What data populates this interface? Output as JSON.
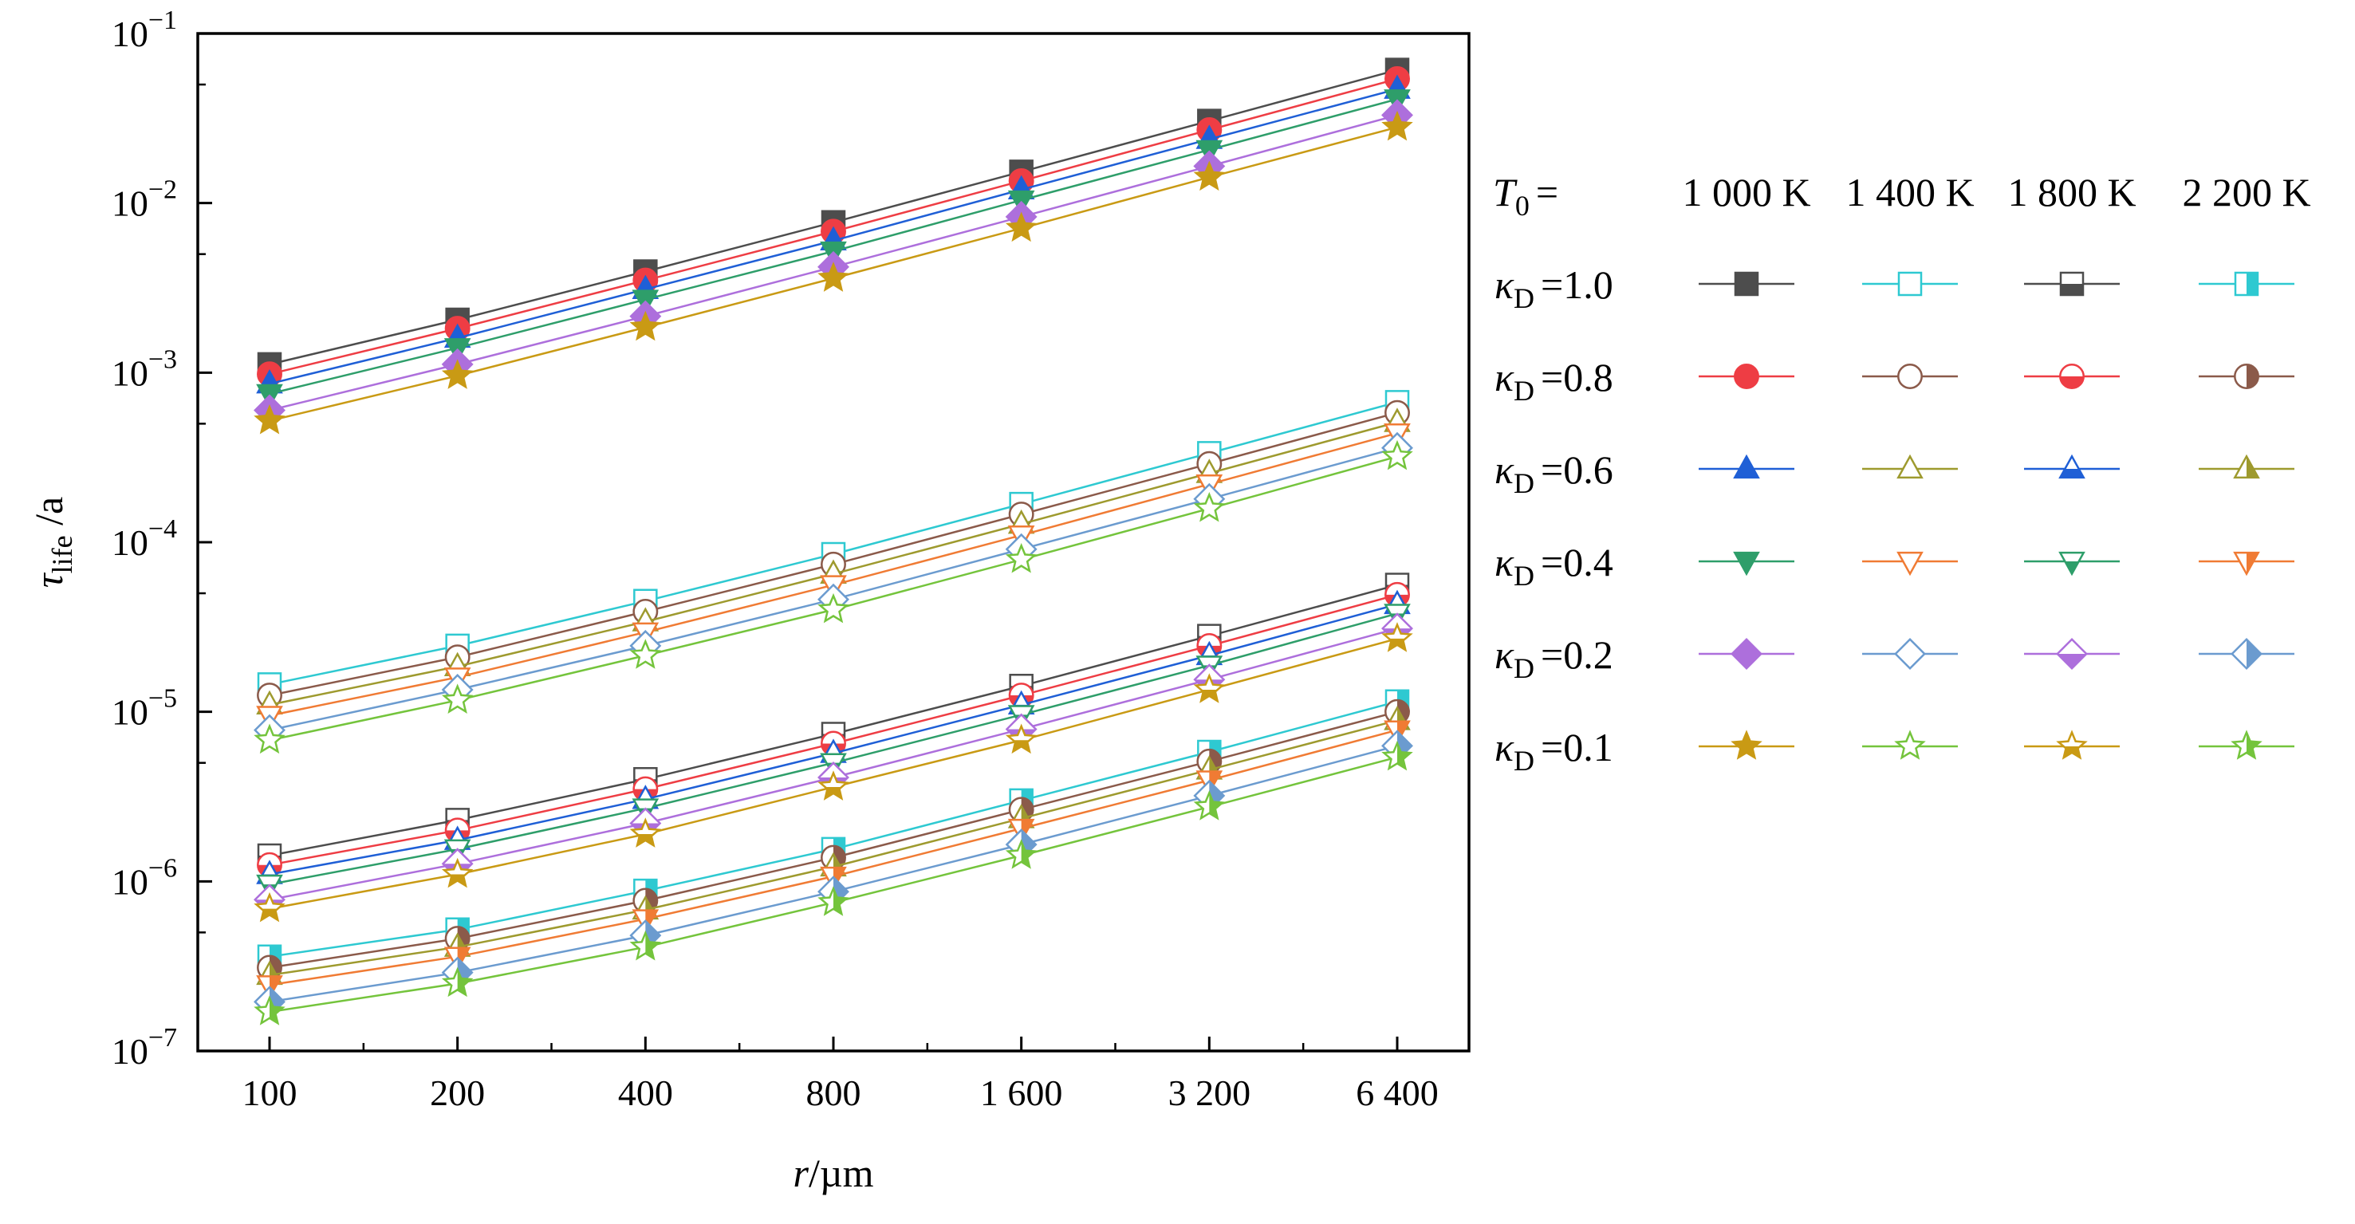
{
  "chart_data": {
    "type": "scatter",
    "title": "",
    "xlabel": "r/µm",
    "ylabel": "τlife /a",
    "x_scale": "log2",
    "y_scale": "log10",
    "x": [
      100,
      200,
      400,
      800,
      1600,
      3200,
      6400
    ],
    "x_tick_labels": [
      "100",
      "200",
      "400",
      "800",
      "1 600",
      "3 200",
      "6 400"
    ],
    "y_ticks": [
      {
        "value": 1e-07,
        "base": "10",
        "exp": "−7"
      },
      {
        "value": 1e-06,
        "base": "10",
        "exp": "−6"
      },
      {
        "value": 1e-05,
        "base": "10",
        "exp": "−5"
      },
      {
        "value": 0.0001,
        "base": "10",
        "exp": "−4"
      },
      {
        "value": 0.001,
        "base": "10",
        "exp": "−3"
      },
      {
        "value": 0.01,
        "base": "10",
        "exp": "−2"
      },
      {
        "value": 0.1,
        "base": "10",
        "exp": "−1"
      }
    ],
    "ylim": [
      1e-07,
      0.1
    ],
    "grid": false,
    "legend": {
      "placement": "right",
      "header_prefix": "T0 =",
      "header_symbol": "T",
      "header_sub": "0",
      "header_eq": "=",
      "temperatures": [
        "1 000 K",
        "1 400 K",
        "1 800 K",
        "2 200 K"
      ],
      "kappa_symbol": "κ",
      "kappa_sub": "D",
      "kappa_labels": [
        "=1.0",
        "=0.8",
        "=0.6",
        "=0.4",
        "=0.2",
        "=0.1"
      ]
    },
    "kappa_styles": [
      {
        "kappa": "1.0",
        "marker": "square",
        "color_a": "#4d4d4d",
        "color_b": "#2ec9d1"
      },
      {
        "kappa": "0.8",
        "marker": "circle",
        "color_a": "#ee3d44",
        "color_b": "#8b5a4a"
      },
      {
        "kappa": "0.6",
        "marker": "tri-up",
        "color_a": "#1f5fd6",
        "color_b": "#9e9a2e"
      },
      {
        "kappa": "0.4",
        "marker": "tri-down",
        "color_a": "#2e9e6a",
        "color_b": "#f07b34"
      },
      {
        "kappa": "0.2",
        "marker": "diamond",
        "color_a": "#ad6fdc",
        "color_b": "#6b9bcf"
      },
      {
        "kappa": "0.1",
        "marker": "star",
        "color_a": "#c99a14",
        "color_b": "#74c43c"
      }
    ],
    "series": [
      {
        "name": "T0=1 000 K, κD=1.0",
        "temperature": "1 000 K",
        "kappa": "1.0",
        "fill": "full",
        "values": [
          0.00112,
          0.00205,
          0.00395,
          0.0077,
          0.0153,
          0.0305,
          0.061
        ]
      },
      {
        "name": "T0=1 000 K, κD=0.8",
        "temperature": "1 000 K",
        "kappa": "0.8",
        "fill": "full",
        "values": [
          0.00098,
          0.00182,
          0.0035,
          0.0068,
          0.0135,
          0.027,
          0.054
        ]
      },
      {
        "name": "T0=1 000 K, κD=0.6",
        "temperature": "1 000 K",
        "kappa": "0.6",
        "fill": "full",
        "values": [
          0.00086,
          0.0016,
          0.0031,
          0.006,
          0.012,
          0.0238,
          0.047
        ]
      },
      {
        "name": "T0=1 000 K, κD=0.4",
        "temperature": "1 000 K",
        "kappa": "0.4",
        "fill": "full",
        "values": [
          0.00075,
          0.0014,
          0.0027,
          0.0052,
          0.0104,
          0.0206,
          0.041
        ]
      },
      {
        "name": "T0=1 000 K, κD=0.2",
        "temperature": "1 000 K",
        "kappa": "0.2",
        "fill": "full",
        "values": [
          0.0006,
          0.00112,
          0.00215,
          0.0042,
          0.0083,
          0.0165,
          0.033
        ]
      },
      {
        "name": "T0=1 000 K, κD=0.1",
        "temperature": "1 000 K",
        "kappa": "0.1",
        "fill": "full",
        "values": [
          0.00052,
          0.00096,
          0.00185,
          0.0036,
          0.0071,
          0.0142,
          0.028
        ]
      },
      {
        "name": "T0=1 400 K, κD=1.0",
        "temperature": "1 400 K",
        "kappa": "1.0",
        "fill": "none",
        "values": [
          1.45e-05,
          2.45e-05,
          4.5e-05,
          8.5e-05,
          0.000168,
          0.000335,
          0.00067
        ]
      },
      {
        "name": "T0=1 400 K, κD=0.8",
        "temperature": "1 400 K",
        "kappa": "0.8",
        "fill": "none",
        "values": [
          1.25e-05,
          2.1e-05,
          3.9e-05,
          7.4e-05,
          0.000146,
          0.00029,
          0.00058
        ]
      },
      {
        "name": "T0=1 400 K, κD=0.6",
        "temperature": "1 400 K",
        "kappa": "0.6",
        "fill": "none",
        "values": [
          1.1e-05,
          1.85e-05,
          3.4e-05,
          6.5e-05,
          0.000128,
          0.000255,
          0.00051
        ]
      },
      {
        "name": "T0=1 400 K, κD=0.4",
        "temperature": "1 400 K",
        "kappa": "0.4",
        "fill": "none",
        "values": [
          9.5e-06,
          1.6e-05,
          2.95e-05,
          5.6e-05,
          0.00011,
          0.00022,
          0.00044
        ]
      },
      {
        "name": "T0=1 400 K, κD=0.2",
        "temperature": "1 400 K",
        "kappa": "0.2",
        "fill": "none",
        "values": [
          7.8e-06,
          1.35e-05,
          2.45e-05,
          4.6e-05,
          9.1e-05,
          0.00018,
          0.00036
        ]
      },
      {
        "name": "T0=1 400 K, κD=0.1",
        "temperature": "1 400 K",
        "kappa": "0.1",
        "fill": "none",
        "values": [
          6.8e-06,
          1.17e-05,
          2.15e-05,
          4e-05,
          7.9e-05,
          0.000158,
          0.00032
        ]
      },
      {
        "name": "T0=1 800 K, κD=1.0",
        "temperature": "1 800 K",
        "kappa": "1.0",
        "fill": "half-bottom",
        "values": [
          1.42e-06,
          2.3e-06,
          4e-06,
          7.4e-06,
          1.42e-05,
          2.8e-05,
          5.6e-05
        ]
      },
      {
        "name": "T0=1 800 K, κD=0.8",
        "temperature": "1 800 K",
        "kappa": "0.8",
        "fill": "half-bottom",
        "values": [
          1.25e-06,
          2e-06,
          3.5e-06,
          6.5e-06,
          1.25e-05,
          2.45e-05,
          4.9e-05
        ]
      },
      {
        "name": "T0=1 800 K, κD=0.6",
        "temperature": "1 800 K",
        "kappa": "0.6",
        "fill": "half-bottom",
        "values": [
          1.1e-06,
          1.75e-06,
          3.05e-06,
          5.7e-06,
          1.1e-05,
          2.15e-05,
          4.3e-05
        ]
      },
      {
        "name": "T0=1 800 K, κD=0.4",
        "temperature": "1 800 K",
        "kappa": "0.4",
        "fill": "half-bottom",
        "values": [
          9.6e-07,
          1.55e-06,
          2.7e-06,
          5e-06,
          9.6e-06,
          1.88e-05,
          3.8e-05
        ]
      },
      {
        "name": "T0=1 800 K, κD=0.2",
        "temperature": "1 800 K",
        "kappa": "0.2",
        "fill": "half-bottom",
        "values": [
          7.8e-07,
          1.27e-06,
          2.2e-06,
          4.1e-06,
          7.9e-06,
          1.55e-05,
          3.1e-05
        ]
      },
      {
        "name": "T0=1 800 K, κD=0.1",
        "temperature": "1 800 K",
        "kappa": "0.1",
        "fill": "half-bottom",
        "values": [
          6.9e-07,
          1.1e-06,
          1.9e-06,
          3.6e-06,
          6.8e-06,
          1.35e-05,
          2.7e-05
        ]
      },
      {
        "name": "T0=2 200 K, κD=1.0",
        "temperature": "2 200 K",
        "kappa": "1.0",
        "fill": "half-right",
        "values": [
          3.6e-07,
          5.2e-07,
          8.8e-07,
          1.55e-06,
          3e-06,
          5.8e-06,
          1.15e-05
        ]
      },
      {
        "name": "T0=2 200 K, κD=0.8",
        "temperature": "2 200 K",
        "kappa": "0.8",
        "fill": "half-right",
        "values": [
          3.1e-07,
          4.6e-07,
          7.7e-07,
          1.38e-06,
          2.65e-06,
          5.1e-06,
          1e-05
        ]
      },
      {
        "name": "T0=2 200 K, κD=0.6",
        "temperature": "2 200 K",
        "kappa": "0.6",
        "fill": "half-right",
        "values": [
          2.8e-07,
          4.1e-07,
          6.8e-07,
          1.22e-06,
          2.35e-06,
          4.55e-06,
          8.9e-06
        ]
      },
      {
        "name": "T0=2 200 K, κD=0.4",
        "temperature": "2 200 K",
        "kappa": "0.4",
        "fill": "half-right",
        "values": [
          2.45e-07,
          3.6e-07,
          6e-07,
          1.07e-06,
          2.05e-06,
          3.95e-06,
          7.8e-06
        ]
      },
      {
        "name": "T0=2 200 K, κD=0.2",
        "temperature": "2 200 K",
        "kappa": "0.2",
        "fill": "half-right",
        "values": [
          1.95e-07,
          2.9e-07,
          4.8e-07,
          8.7e-07,
          1.65e-06,
          3.2e-06,
          6.3e-06
        ]
      },
      {
        "name": "T0=2 200 K, κD=0.1",
        "temperature": "2 200 K",
        "kappa": "0.1",
        "fill": "half-right",
        "values": [
          1.7e-07,
          2.5e-07,
          4.1e-07,
          7.5e-07,
          1.42e-06,
          2.75e-06,
          5.4e-06
        ]
      }
    ]
  }
}
